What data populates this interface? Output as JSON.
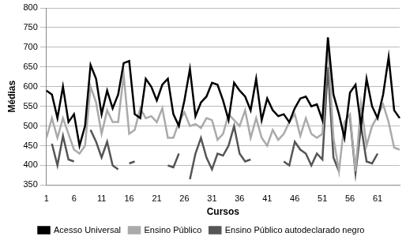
{
  "chart_data": {
    "type": "line",
    "x_label": "Cursos",
    "y_label": "Médias",
    "categories": [
      1,
      null,
      null,
      null,
      null,
      6,
      null,
      null,
      null,
      null,
      11,
      null,
      null,
      null,
      null,
      16,
      null,
      null,
      null,
      null,
      21,
      null,
      null,
      null,
      null,
      26,
      null,
      null,
      null,
      null,
      31,
      null,
      null,
      null,
      null,
      36,
      null,
      null,
      null,
      null,
      41,
      null,
      null,
      null,
      null,
      46,
      null,
      null,
      null,
      null,
      51,
      null,
      null,
      null,
      null,
      56,
      null,
      null,
      null,
      null,
      61,
      null,
      null,
      null,
      null
    ],
    "ylim": [
      350,
      800
    ],
    "yticks": [
      350,
      400,
      450,
      500,
      550,
      600,
      650,
      700,
      750,
      800
    ],
    "grid": true,
    "legend": "bottom",
    "series": [
      {
        "name": "Acesso Universal",
        "color": "#000000",
        "values": [
          590,
          580,
          520,
          600,
          510,
          530,
          450,
          500,
          655,
          620,
          530,
          590,
          545,
          580,
          660,
          665,
          530,
          520,
          620,
          600,
          565,
          605,
          620,
          530,
          500,
          565,
          645,
          525,
          560,
          575,
          610,
          605,
          565,
          515,
          610,
          590,
          575,
          540,
          620,
          515,
          570,
          540,
          525,
          530,
          510,
          545,
          570,
          575,
          550,
          555,
          515,
          725,
          580,
          530,
          470,
          585,
          605,
          500,
          620,
          550,
          520,
          580,
          675,
          540,
          520
        ]
      },
      {
        "name": "Ensino Público",
        "color": "#aaaaaa",
        "values": [
          470,
          520,
          470,
          520,
          480,
          440,
          430,
          450,
          600,
          560,
          480,
          540,
          510,
          510,
          630,
          480,
          490,
          545,
          520,
          525,
          510,
          545,
          470,
          470,
          510,
          535,
          500,
          505,
          495,
          520,
          515,
          465,
          480,
          530,
          515,
          500,
          540,
          470,
          520,
          470,
          450,
          490,
          465,
          480,
          510,
          530,
          475,
          520,
          480,
          470,
          480,
          710,
          470,
          385,
          510,
          530,
          385,
          555,
          450,
          500,
          525,
          555,
          510,
          445,
          440
        ]
      },
      {
        "name": "Ensino Público autodeclarado negro",
        "color": "#555555",
        "values": [
          null,
          455,
          400,
          475,
          415,
          410,
          null,
          null,
          490,
          460,
          420,
          460,
          400,
          390,
          null,
          405,
          410,
          null,
          null,
          null,
          null,
          null,
          400,
          395,
          430,
          null,
          365,
          430,
          470,
          420,
          390,
          430,
          425,
          450,
          500,
          430,
          410,
          415,
          null,
          null,
          null,
          null,
          null,
          410,
          400,
          460,
          440,
          430,
          400,
          430,
          415,
          650,
          420,
          385,
          null,
          520,
          380,
          500,
          410,
          405,
          430,
          null,
          null,
          null,
          null
        ]
      }
    ]
  }
}
